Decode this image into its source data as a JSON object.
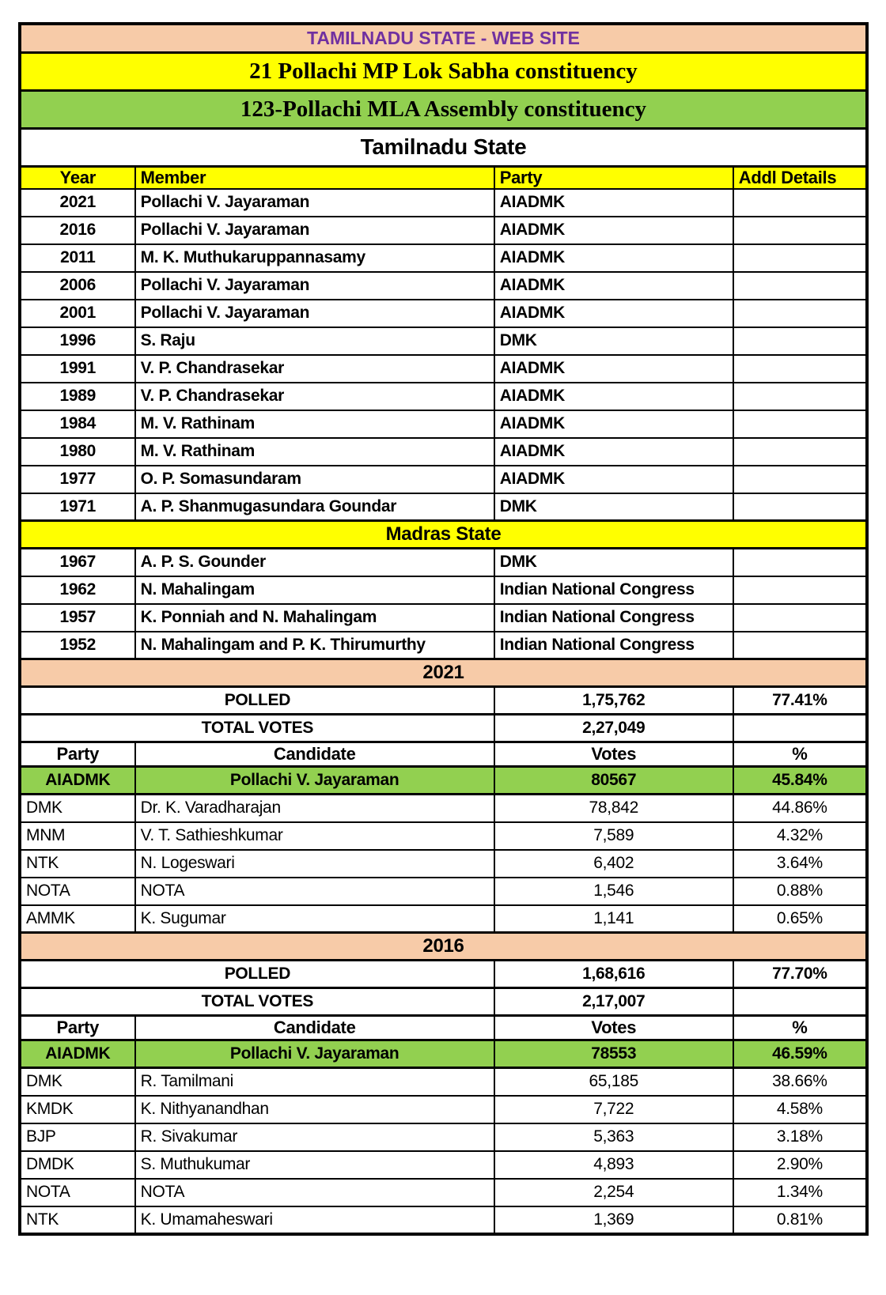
{
  "titles": {
    "website": "TAMILNADU STATE - WEB SITE",
    "mp_constituency": "21 Pollachi MP Lok Sabha constituency",
    "mla_constituency": "123-Pollachi MLA Assembly constituency"
  },
  "colors": {
    "peach": "#F7CBA8",
    "yellow": "#FFFF00",
    "green": "#92D050",
    "purple": "#7030A0",
    "border": "#000000"
  },
  "members_table": {
    "title": "Tamilnadu State",
    "headers": [
      "Year",
      "Member",
      "Party",
      "Addl Details"
    ],
    "tamilnadu_rows": [
      {
        "year": "2021",
        "member": "Pollachi V. Jayaraman",
        "party": "AIADMK",
        "addl": ""
      },
      {
        "year": "2016",
        "member": "Pollachi V. Jayaraman",
        "party": "AIADMK",
        "addl": ""
      },
      {
        "year": "2011",
        "member": "M. K. Muthukaruppannasamy",
        "party": "AIADMK",
        "addl": ""
      },
      {
        "year": "2006",
        "member": "Pollachi V. Jayaraman",
        "party": "AIADMK",
        "addl": ""
      },
      {
        "year": "2001",
        "member": "Pollachi V. Jayaraman",
        "party": "AIADMK",
        "addl": ""
      },
      {
        "year": "1996",
        "member": "S. Raju",
        "party": "DMK",
        "addl": ""
      },
      {
        "year": "1991",
        "member": "V. P. Chandrasekar",
        "party": "AIADMK",
        "addl": ""
      },
      {
        "year": "1989",
        "member": "V. P. Chandrasekar",
        "party": "AIADMK",
        "addl": ""
      },
      {
        "year": "1984",
        "member": "M. V. Rathinam",
        "party": "AIADMK",
        "addl": ""
      },
      {
        "year": "1980",
        "member": "M. V. Rathinam",
        "party": "AIADMK",
        "addl": ""
      },
      {
        "year": "1977",
        "member": "O. P. Somasundaram",
        "party": "AIADMK",
        "addl": ""
      },
      {
        "year": "1971",
        "member": "A. P. Shanmugasundara Goundar",
        "party": "DMK",
        "addl": ""
      }
    ],
    "madras_banner": "Madras State",
    "madras_rows": [
      {
        "year": "1967",
        "member": "A. P. S. Gounder",
        "party": "DMK",
        "addl": ""
      },
      {
        "year": "1962",
        "member": "N. Mahalingam",
        "party": "Indian National Congress",
        "addl": ""
      },
      {
        "year": "1957",
        "member": "K. Ponniah and N. Mahalingam",
        "party": "Indian National Congress",
        "addl": ""
      },
      {
        "year": "1952",
        "member": "N. Mahalingam and P. K. Thirumurthy",
        "party": "Indian National Congress",
        "addl": ""
      }
    ]
  },
  "elections": [
    {
      "year": "2021",
      "polled_label": "POLLED",
      "polled_votes": "1,75,762",
      "polled_pct": "77.41%",
      "total_label": "TOTAL VOTES",
      "total_votes": "2,27,049",
      "headers": [
        "Party",
        "Candidate",
        "Votes",
        "%"
      ],
      "winner": {
        "party": "AIADMK",
        "candidate": "Pollachi V. Jayaraman",
        "votes": "80567",
        "pct": "45.84%"
      },
      "candidates": [
        {
          "party": "DMK",
          "candidate": "Dr. K. Varadharajan",
          "votes": "78,842",
          "pct": "44.86%"
        },
        {
          "party": "MNM",
          "candidate": "V. T. Sathieshkumar",
          "votes": "7,589",
          "pct": "4.32%"
        },
        {
          "party": "NTK",
          "candidate": "N. Logeswari",
          "votes": "6,402",
          "pct": "3.64%"
        },
        {
          "party": "NOTA",
          "candidate": "NOTA",
          "votes": "1,546",
          "pct": "0.88%"
        },
        {
          "party": "AMMK",
          "candidate": "K. Sugumar",
          "votes": "1,141",
          "pct": "0.65%"
        }
      ]
    },
    {
      "year": "2016",
      "polled_label": "POLLED",
      "polled_votes": "1,68,616",
      "polled_pct": "77.70%",
      "total_label": "TOTAL VOTES",
      "total_votes": "2,17,007",
      "headers": [
        "Party",
        "Candidate",
        "Votes",
        "%"
      ],
      "winner": {
        "party": "AIADMK",
        "candidate": "Pollachi V. Jayaraman",
        "votes": "78553",
        "pct": "46.59%"
      },
      "candidates": [
        {
          "party": "DMK",
          "candidate": "R. Tamilmani",
          "votes": "65,185",
          "pct": "38.66%"
        },
        {
          "party": "KMDK",
          "candidate": "K. Nithyanandhan",
          "votes": "7,722",
          "pct": "4.58%"
        },
        {
          "party": "BJP",
          "candidate": "R. Sivakumar",
          "votes": "5,363",
          "pct": "3.18%"
        },
        {
          "party": "DMDK",
          "candidate": "S. Muthukumar",
          "votes": "4,893",
          "pct": "2.90%"
        },
        {
          "party": "NOTA",
          "candidate": "NOTA",
          "votes": "2,254",
          "pct": "1.34%"
        },
        {
          "party": "NTK",
          "candidate": "K. Umamaheswari",
          "votes": "1,369",
          "pct": "0.81%"
        }
      ]
    }
  ]
}
